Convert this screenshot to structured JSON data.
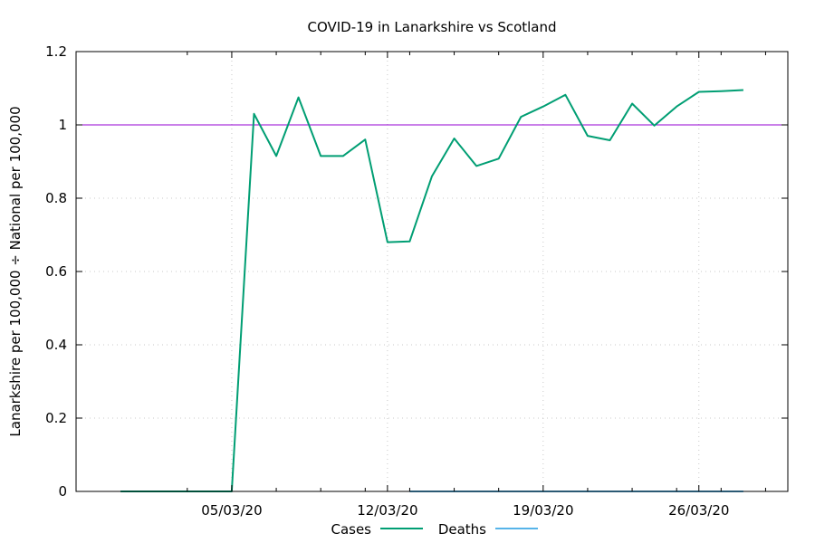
{
  "chart_data": {
    "type": "line",
    "title": "COVID-19 in Lanarkshire vs Scotland",
    "xlabel": "",
    "ylabel": "Lanarkshire per 100,000 ÷ National per 100,000",
    "x": [
      "29/02/20",
      "01/03/20",
      "02/03/20",
      "03/03/20",
      "04/03/20",
      "05/03/20",
      "06/03/20",
      "07/03/20",
      "08/03/20",
      "09/03/20",
      "10/03/20",
      "11/03/20",
      "12/03/20",
      "13/03/20",
      "14/03/20",
      "15/03/20",
      "16/03/20",
      "17/03/20",
      "18/03/20",
      "19/03/20",
      "20/03/20",
      "21/03/20",
      "22/03/20",
      "23/03/20",
      "24/03/20",
      "25/03/20",
      "26/03/20",
      "27/03/20",
      "28/03/20"
    ],
    "series": [
      {
        "name": "Cases",
        "color": "#009e73",
        "values": [
          0,
          0,
          0,
          0,
          0,
          0,
          1.03,
          0.915,
          1.075,
          0.915,
          0.915,
          0.96,
          0.68,
          0.682,
          0.86,
          0.963,
          0.888,
          0.908,
          1.022,
          1.05,
          1.082,
          0.97,
          0.958,
          1.058,
          0.998,
          1.05,
          1.09,
          1.092,
          1.095
        ]
      },
      {
        "name": "Deaths",
        "color": "#56b4e9",
        "values": [
          null,
          null,
          null,
          null,
          null,
          null,
          null,
          null,
          null,
          null,
          null,
          null,
          null,
          0,
          0,
          0,
          0,
          0,
          0,
          0,
          0,
          0,
          0,
          0,
          0,
          0,
          0,
          0,
          0
        ]
      }
    ],
    "reference_line": {
      "y": 1,
      "color": "#9400d3"
    },
    "xticks": [
      "05/03/20",
      "12/03/20",
      "19/03/20",
      "26/03/20"
    ],
    "xlim": [
      "27/02/20",
      "30/03/20"
    ],
    "ylim": [
      0,
      1.2
    ],
    "yticks": [
      0,
      0.2,
      0.4,
      0.6,
      0.8,
      1,
      1.2
    ],
    "ytick_labels": [
      "0",
      "0.2",
      "0.4",
      "0.6",
      "0.8",
      "1",
      "1.2"
    ],
    "grid": true,
    "legend": "bottom-center"
  }
}
